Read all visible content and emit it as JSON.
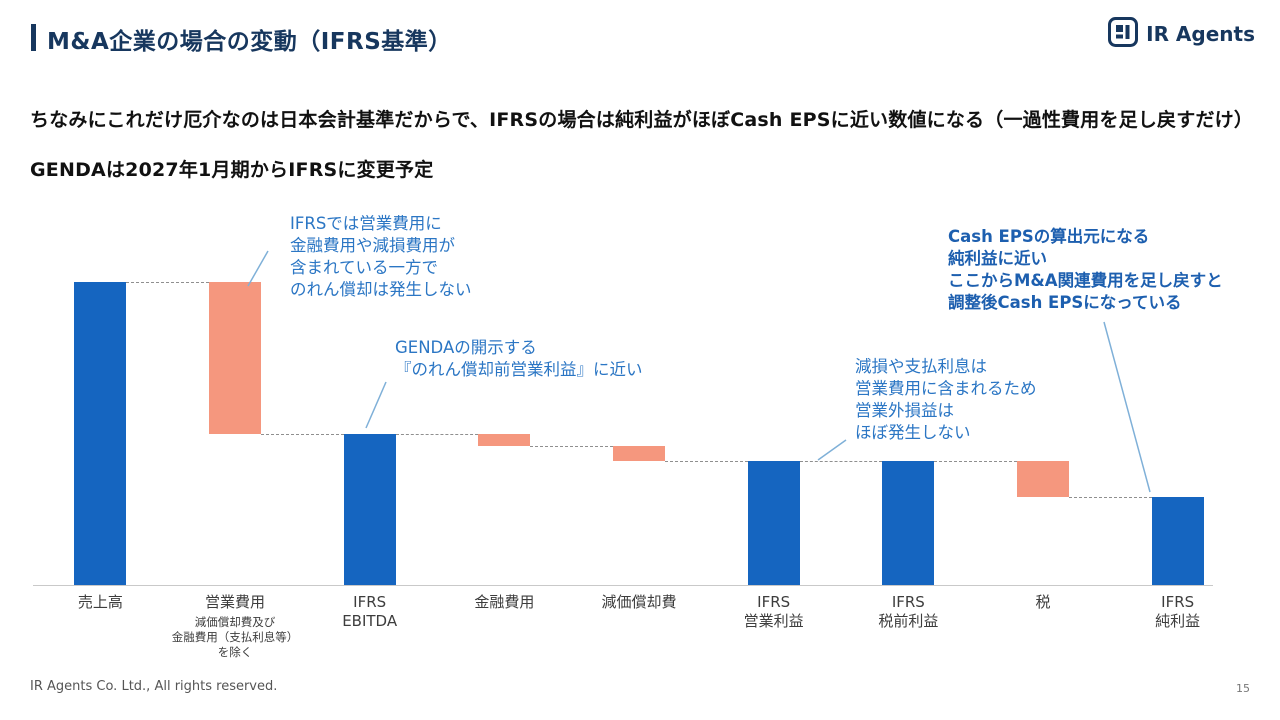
{
  "header": {
    "title": "M&A企業の場合の変動（IFRS基準）",
    "logo_text": "IR Agents"
  },
  "intro": {
    "line1": "ちなみにこれだけ厄介なのは日本会計基準だからで、IFRSの場合は純利益がほぼCash EPSに近い数値になる（一過性費用を足し戻すだけ）",
    "line2": "GENDAは2027年1月期からIFRSに変更予定"
  },
  "chart_data": {
    "type": "bar",
    "subtype": "waterfall",
    "title": "M&A企業の場合の変動（IFRS基準）",
    "value_scale_note": "値ラベルなし・売上高=100とした相対推定値",
    "ylim": [
      0,
      100
    ],
    "grid": false,
    "legend": false,
    "colors": {
      "total": "#1565c0",
      "decrease": "#f5977e"
    },
    "bars": [
      {
        "label": "売上高",
        "start": 0,
        "end": 100,
        "kind": "total"
      },
      {
        "label": "営業費用",
        "sublabel": "減価償却費及び\n金融費用（支払利息等）\nを除く",
        "start": 50,
        "end": 100,
        "kind": "decrease"
      },
      {
        "label": "IFRS\nEBITDA",
        "start": 0,
        "end": 50,
        "kind": "total"
      },
      {
        "label": "金融費用",
        "start": 46,
        "end": 50,
        "kind": "decrease"
      },
      {
        "label": "減価償却費",
        "start": 41,
        "end": 46,
        "kind": "decrease"
      },
      {
        "label": "IFRS\n営業利益",
        "start": 0,
        "end": 41,
        "kind": "total"
      },
      {
        "label": "IFRS\n税前利益",
        "start": 0,
        "end": 41,
        "kind": "total"
      },
      {
        "label": "税",
        "start": 29,
        "end": 41,
        "kind": "decrease"
      },
      {
        "label": "IFRS\n純利益",
        "start": 0,
        "end": 29,
        "kind": "total"
      }
    ]
  },
  "annotations": [
    {
      "text": "IFRSでは営業費用に\n金融費用や減損費用が\n含まれている一方で\nのれん償却は発生しない"
    },
    {
      "text": "GENDAの開示する\n『のれん償却前営業利益』に近い"
    },
    {
      "text": "減損や支払利息は\n営業費用に含まれるため\n営業外損益は\nほぼ発生しない"
    },
    {
      "text": "Cash EPSの算出元になる\n純利益に近い\nここからM&A関連費用を足し戻すと\n調整後Cash EPSになっている"
    }
  ],
  "footer": {
    "copyright": "IR Agents Co. Ltd., All rights reserved.",
    "page_number": "15"
  }
}
